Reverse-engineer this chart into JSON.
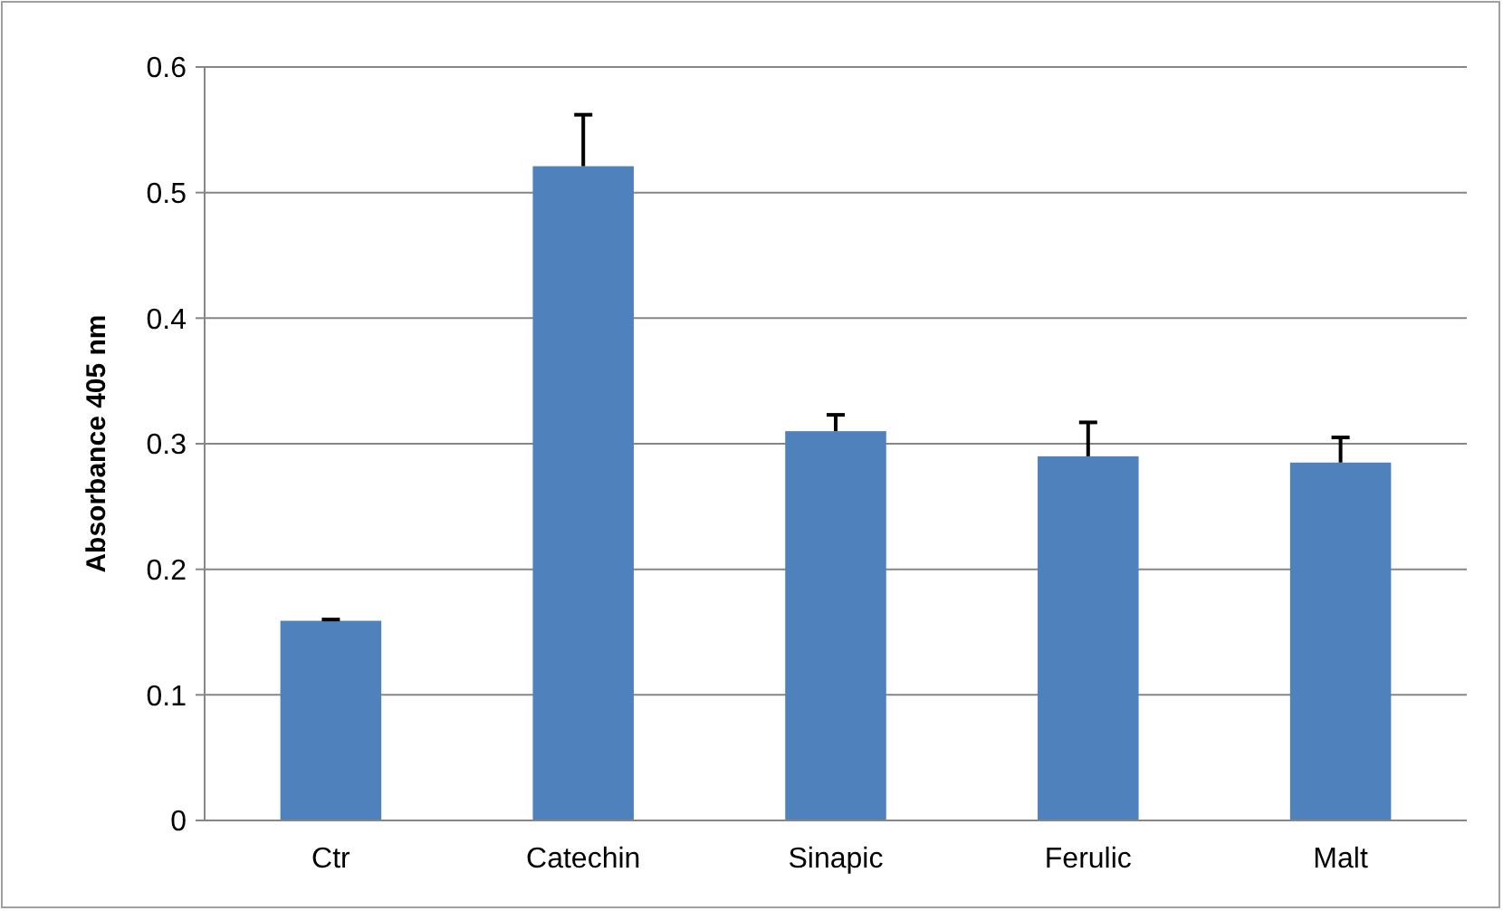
{
  "chart_data": {
    "type": "bar",
    "ylabel": "Absorbance 405 nm",
    "categories": [
      "Ctr",
      "Catechin",
      "Sinapic",
      "Ferulic",
      "Malt"
    ],
    "values": [
      0.159,
      0.521,
      0.31,
      0.29,
      0.285
    ],
    "errors": [
      [
        0.159,
        0.16
      ],
      [
        0.521,
        0.562
      ],
      [
        0.31,
        0.323
      ],
      [
        0.29,
        0.317
      ],
      [
        0.285,
        0.305
      ]
    ],
    "color": "#4f81bd",
    "ylim": [
      0,
      0.6
    ],
    "yticks": [
      0,
      0.1,
      0.2,
      0.3,
      0.4,
      0.5,
      0.6
    ],
    "grid": "y"
  }
}
